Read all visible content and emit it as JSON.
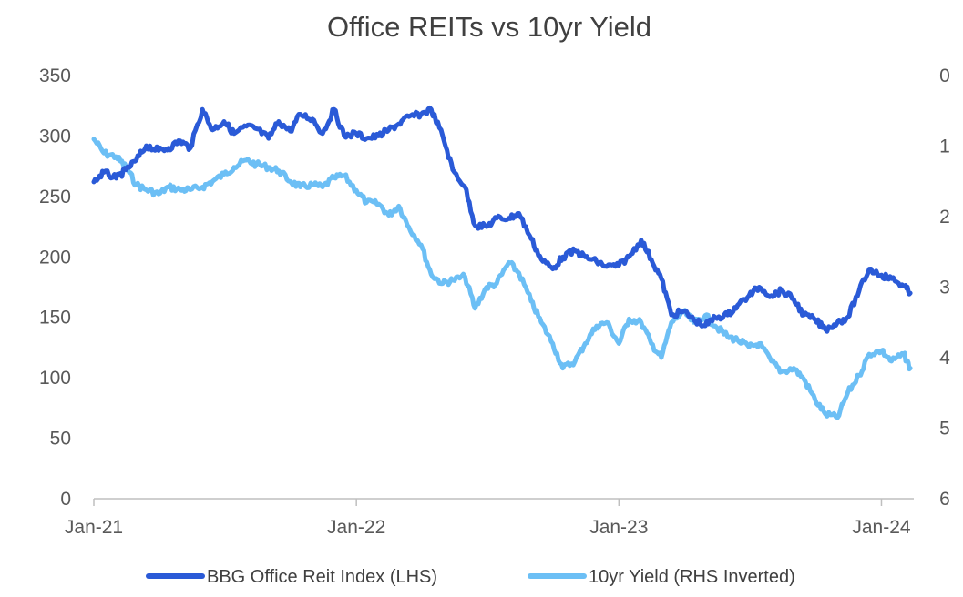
{
  "chart_data": {
    "type": "line",
    "title": "Office REITs vs 10yr Yield",
    "xlabel": "",
    "ylabel": "",
    "y2label": "",
    "x_ticks": [
      "Jan-21",
      "Jan-22",
      "Jan-23",
      "Jan-24"
    ],
    "x_range": [
      "2021-01-01",
      "2024-02-15"
    ],
    "ylim": [
      0,
      350
    ],
    "y_ticks": [
      0,
      50,
      100,
      150,
      200,
      250,
      300,
      350
    ],
    "y2lim": [
      0,
      6
    ],
    "y2_inverted": true,
    "y2_ticks": [
      0,
      1,
      2,
      3,
      4,
      5,
      6
    ],
    "grid": false,
    "legend_position": "bottom",
    "series": [
      {
        "name": "BBG Office Reit Index (LHS)",
        "axis": "left",
        "color": "#2a5ad7",
        "points": [
          [
            "2021-01-01",
            262
          ],
          [
            "2021-01-15",
            270
          ],
          [
            "2021-02-01",
            265
          ],
          [
            "2021-02-15",
            272
          ],
          [
            "2021-03-01",
            280
          ],
          [
            "2021-03-15",
            292
          ],
          [
            "2021-04-01",
            288
          ],
          [
            "2021-04-15",
            290
          ],
          [
            "2021-05-01",
            296
          ],
          [
            "2021-05-15",
            290
          ],
          [
            "2021-06-01",
            322
          ],
          [
            "2021-06-15",
            305
          ],
          [
            "2021-07-01",
            312
          ],
          [
            "2021-07-15",
            302
          ],
          [
            "2021-08-01",
            308
          ],
          [
            "2021-08-15",
            306
          ],
          [
            "2021-09-01",
            298
          ],
          [
            "2021-09-15",
            312
          ],
          [
            "2021-10-01",
            304
          ],
          [
            "2021-10-15",
            318
          ],
          [
            "2021-11-01",
            314
          ],
          [
            "2021-11-15",
            302
          ],
          [
            "2021-12-01",
            322
          ],
          [
            "2021-12-15",
            300
          ],
          [
            "2022-01-01",
            302
          ],
          [
            "2022-01-15",
            298
          ],
          [
            "2022-02-01",
            300
          ],
          [
            "2022-02-15",
            305
          ],
          [
            "2022-03-01",
            310
          ],
          [
            "2022-03-15",
            316
          ],
          [
            "2022-04-01",
            318
          ],
          [
            "2022-04-15",
            322
          ],
          [
            "2022-05-01",
            300
          ],
          [
            "2022-05-15",
            272
          ],
          [
            "2022-06-01",
            258
          ],
          [
            "2022-06-15",
            226
          ],
          [
            "2022-07-01",
            225
          ],
          [
            "2022-07-15",
            232
          ],
          [
            "2022-08-01",
            232
          ],
          [
            "2022-08-15",
            236
          ],
          [
            "2022-09-01",
            215
          ],
          [
            "2022-09-15",
            198
          ],
          [
            "2022-10-01",
            190
          ],
          [
            "2022-10-15",
            200
          ],
          [
            "2022-11-01",
            205
          ],
          [
            "2022-11-15",
            200
          ],
          [
            "2022-12-01",
            196
          ],
          [
            "2022-12-15",
            192
          ],
          [
            "2023-01-01",
            193
          ],
          [
            "2023-01-15",
            200
          ],
          [
            "2023-02-01",
            214
          ],
          [
            "2023-02-15",
            198
          ],
          [
            "2023-03-01",
            182
          ],
          [
            "2023-03-15",
            152
          ],
          [
            "2023-04-01",
            155
          ],
          [
            "2023-04-15",
            148
          ],
          [
            "2023-05-01",
            143
          ],
          [
            "2023-05-15",
            150
          ],
          [
            "2023-06-01",
            152
          ],
          [
            "2023-06-15",
            160
          ],
          [
            "2023-07-01",
            168
          ],
          [
            "2023-07-15",
            175
          ],
          [
            "2023-08-01",
            168
          ],
          [
            "2023-08-15",
            172
          ],
          [
            "2023-09-01",
            165
          ],
          [
            "2023-09-15",
            152
          ],
          [
            "2023-10-01",
            148
          ],
          [
            "2023-10-15",
            140
          ],
          [
            "2023-11-01",
            146
          ],
          [
            "2023-11-15",
            150
          ],
          [
            "2023-12-01",
            172
          ],
          [
            "2023-12-15",
            190
          ],
          [
            "2024-01-01",
            185
          ],
          [
            "2024-01-15",
            182
          ],
          [
            "2024-02-01",
            176
          ],
          [
            "2024-02-10",
            170
          ]
        ]
      },
      {
        "name": "10yr Yield (RHS Inverted)",
        "axis": "right",
        "color": "#6cbff5",
        "points": [
          [
            "2021-01-01",
            0.9
          ],
          [
            "2021-01-15",
            1.1
          ],
          [
            "2021-02-01",
            1.15
          ],
          [
            "2021-02-15",
            1.3
          ],
          [
            "2021-03-01",
            1.55
          ],
          [
            "2021-03-15",
            1.62
          ],
          [
            "2021-04-01",
            1.68
          ],
          [
            "2021-04-15",
            1.58
          ],
          [
            "2021-05-01",
            1.62
          ],
          [
            "2021-05-15",
            1.62
          ],
          [
            "2021-06-01",
            1.58
          ],
          [
            "2021-06-15",
            1.5
          ],
          [
            "2021-07-01",
            1.4
          ],
          [
            "2021-07-15",
            1.3
          ],
          [
            "2021-08-01",
            1.2
          ],
          [
            "2021-08-15",
            1.26
          ],
          [
            "2021-09-01",
            1.3
          ],
          [
            "2021-09-15",
            1.35
          ],
          [
            "2021-10-01",
            1.5
          ],
          [
            "2021-10-15",
            1.58
          ],
          [
            "2021-11-01",
            1.55
          ],
          [
            "2021-11-15",
            1.58
          ],
          [
            "2021-12-01",
            1.45
          ],
          [
            "2021-12-15",
            1.42
          ],
          [
            "2022-01-01",
            1.63
          ],
          [
            "2022-01-15",
            1.8
          ],
          [
            "2022-02-01",
            1.82
          ],
          [
            "2022-02-15",
            1.98
          ],
          [
            "2022-03-01",
            1.85
          ],
          [
            "2022-03-15",
            2.15
          ],
          [
            "2022-04-01",
            2.4
          ],
          [
            "2022-04-15",
            2.82
          ],
          [
            "2022-05-01",
            2.95
          ],
          [
            "2022-05-15",
            2.9
          ],
          [
            "2022-06-01",
            2.85
          ],
          [
            "2022-06-15",
            3.3
          ],
          [
            "2022-07-01",
            3.0
          ],
          [
            "2022-07-15",
            2.95
          ],
          [
            "2022-08-01",
            2.65
          ],
          [
            "2022-08-15",
            2.8
          ],
          [
            "2022-09-01",
            3.2
          ],
          [
            "2022-09-15",
            3.5
          ],
          [
            "2022-10-01",
            3.8
          ],
          [
            "2022-10-15",
            4.15
          ],
          [
            "2022-11-01",
            4.05
          ],
          [
            "2022-11-15",
            3.8
          ],
          [
            "2022-12-01",
            3.55
          ],
          [
            "2022-12-15",
            3.5
          ],
          [
            "2023-01-01",
            3.8
          ],
          [
            "2023-01-15",
            3.45
          ],
          [
            "2023-02-01",
            3.5
          ],
          [
            "2023-02-15",
            3.8
          ],
          [
            "2023-03-01",
            4.0
          ],
          [
            "2023-03-15",
            3.5
          ],
          [
            "2023-04-01",
            3.35
          ],
          [
            "2023-04-15",
            3.5
          ],
          [
            "2023-05-01",
            3.4
          ],
          [
            "2023-05-15",
            3.55
          ],
          [
            "2023-06-01",
            3.7
          ],
          [
            "2023-06-15",
            3.75
          ],
          [
            "2023-07-01",
            3.85
          ],
          [
            "2023-07-15",
            3.8
          ],
          [
            "2023-08-01",
            4.05
          ],
          [
            "2023-08-15",
            4.2
          ],
          [
            "2023-09-01",
            4.15
          ],
          [
            "2023-09-15",
            4.3
          ],
          [
            "2023-10-01",
            4.6
          ],
          [
            "2023-10-15",
            4.8
          ],
          [
            "2023-11-01",
            4.85
          ],
          [
            "2023-11-15",
            4.5
          ],
          [
            "2023-12-01",
            4.25
          ],
          [
            "2023-12-15",
            3.95
          ],
          [
            "2024-01-01",
            3.9
          ],
          [
            "2024-01-15",
            4.05
          ],
          [
            "2024-02-01",
            3.95
          ],
          [
            "2024-02-10",
            4.15
          ]
        ]
      }
    ]
  }
}
